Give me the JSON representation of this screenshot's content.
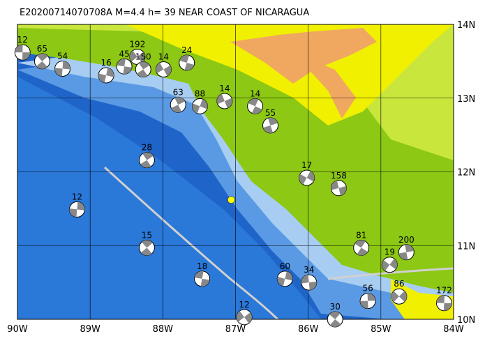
{
  "map": {
    "title": "E20200714070708A M=4.4 h= 39 NEAR COAST OF NICARAGUA",
    "xlim": [
      -90,
      -84
    ],
    "ylim": [
      10,
      14
    ],
    "xticks": [
      {
        "value": -90,
        "label": "90W"
      },
      {
        "value": -89,
        "label": "89W"
      },
      {
        "value": -88,
        "label": "88W"
      },
      {
        "value": -87,
        "label": "87W"
      },
      {
        "value": -86,
        "label": "86W"
      },
      {
        "value": -85,
        "label": "85W"
      },
      {
        "value": -84,
        "label": "84W"
      }
    ],
    "yticks": [
      {
        "value": 10,
        "label": "10N"
      },
      {
        "value": 11,
        "label": "11N"
      },
      {
        "value": 12,
        "label": "12N"
      },
      {
        "value": 13,
        "label": "13N"
      },
      {
        "value": 14,
        "label": "14N"
      }
    ],
    "epicenter": {
      "lon": -87.06,
      "lat": 11.62
    },
    "events": [
      {
        "label": "12",
        "lon": -89.93,
        "lat": 13.62
      },
      {
        "label": "65",
        "lon": -89.66,
        "lat": 13.5
      },
      {
        "label": "54",
        "lon": -89.38,
        "lat": 13.4
      },
      {
        "label": "192",
        "lon": -88.35,
        "lat": 13.56
      },
      {
        "label": "45",
        "lon": -88.53,
        "lat": 13.43
      },
      {
        "label": "150",
        "lon": -88.27,
        "lat": 13.39
      },
      {
        "label": "16",
        "lon": -88.78,
        "lat": 13.31
      },
      {
        "label": "14",
        "lon": -87.99,
        "lat": 13.39
      },
      {
        "label": "24",
        "lon": -87.67,
        "lat": 13.48
      },
      {
        "label": "63",
        "lon": -87.79,
        "lat": 12.91
      },
      {
        "label": "88",
        "lon": -87.49,
        "lat": 12.89
      },
      {
        "label": "14",
        "lon": -87.15,
        "lat": 12.96
      },
      {
        "label": "14",
        "lon": -86.73,
        "lat": 12.89
      },
      {
        "label": "55",
        "lon": -86.52,
        "lat": 12.63
      },
      {
        "label": "17",
        "lon": -86.02,
        "lat": 11.92
      },
      {
        "label": "158",
        "lon": -85.58,
        "lat": 11.78
      },
      {
        "label": "81",
        "lon": -85.27,
        "lat": 10.97
      },
      {
        "label": "200",
        "lon": -84.65,
        "lat": 10.91
      },
      {
        "label": "19",
        "lon": -84.88,
        "lat": 10.74
      },
      {
        "label": "34",
        "lon": -85.99,
        "lat": 10.5
      },
      {
        "label": "30",
        "lon": -85.63,
        "lat": 10.0
      },
      {
        "label": "56",
        "lon": -85.18,
        "lat": 10.25
      },
      {
        "label": "86",
        "lon": -84.75,
        "lat": 10.31
      },
      {
        "label": "172",
        "lon": -84.13,
        "lat": 10.22
      },
      {
        "label": "15",
        "lon": -88.22,
        "lat": 10.97
      },
      {
        "label": "12",
        "lon": -89.18,
        "lat": 11.49
      },
      {
        "label": "12",
        "lon": -86.88,
        "lat": 10.03
      },
      {
        "label": "18",
        "lon": -87.46,
        "lat": 10.55
      },
      {
        "label": "28",
        "lon": -88.22,
        "lat": 12.16
      },
      {
        "label": "60",
        "lon": -86.32,
        "lat": 10.55
      }
    ]
  }
}
